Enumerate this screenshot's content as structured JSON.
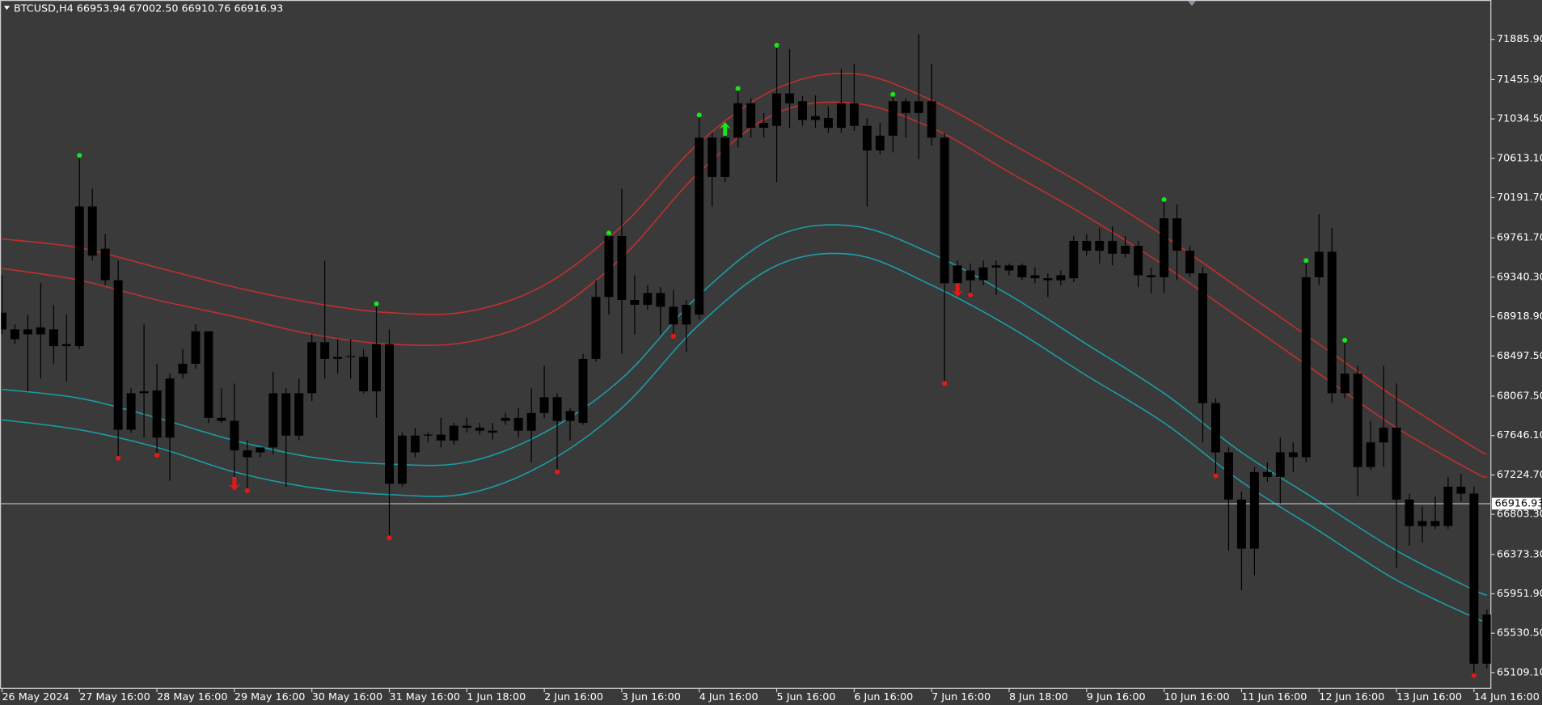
{
  "chart_data": {
    "type": "candlestick",
    "title": "BTCUSD,H4  66953.94 67002.50 66910.76 66916.93",
    "candle_color": "#000000",
    "categories": [
      "26 May 2024",
      null,
      null,
      null,
      null,
      null,
      "27 May 16:00",
      null,
      null,
      null,
      null,
      null,
      "28 May 16:00",
      null,
      null,
      null,
      null,
      null,
      "29 May 16:00",
      null,
      null,
      null,
      null,
      null,
      "30 May 16:00",
      null,
      null,
      null,
      null,
      null,
      "31 May 16:00",
      null,
      null,
      null,
      null,
      null,
      "1 Jun 18:00",
      null,
      null,
      null,
      null,
      null,
      "2 Jun 16:00",
      null,
      null,
      null,
      null,
      null,
      "3 Jun 16:00",
      null,
      null,
      null,
      null,
      null,
      "4 Jun 16:00",
      null,
      null,
      null,
      null,
      null,
      "5 Jun 16:00",
      null,
      null,
      null,
      null,
      null,
      "6 Jun 16:00",
      null,
      null,
      null,
      null,
      null,
      "7 Jun 16:00",
      null,
      null,
      null,
      null,
      null,
      "8 Jun 18:00",
      null,
      null,
      null,
      null,
      null,
      "9 Jun 16:00",
      null,
      null,
      null,
      null,
      null,
      "10 Jun 16:00",
      null,
      null,
      null,
      null,
      null,
      "11 Jun 16:00",
      null,
      null,
      null,
      null,
      null,
      "12 Jun 16:00",
      null,
      null,
      null,
      null,
      null,
      "13 Jun 16:00",
      null,
      null,
      null,
      null,
      null,
      "14 Jun 16:00",
      null
    ],
    "open": [
      68961,
      68782,
      68782,
      68803,
      68782,
      68624,
      68603,
      70097,
      69645,
      69308,
      68098,
      68119,
      68129,
      67624,
      68308,
      68414,
      68761,
      67835,
      67803,
      67487,
      67466,
      67519,
      68098,
      67645,
      68098,
      68645,
      68466,
      68487,
      68487,
      68119,
      68624,
      67130,
      67645,
      67645,
      67656,
      67593,
      67751,
      67730,
      67698,
      67803,
      67835,
      67698,
      67887,
      68056,
      67803,
      67782,
      68466,
      69129,
      69781,
      69097,
      69045,
      69171,
      69024,
      68834,
      68940,
      70834,
      70413,
      70834,
      71202,
      70939,
      70960,
      71307,
      71223,
      71065,
      71044,
      70939,
      71202,
      70960,
      70697,
      70855,
      71223,
      71097,
      71223,
      70834,
      69276,
      69413,
      69308,
      69445,
      69466,
      69466,
      69361,
      69329,
      69308,
      69329,
      69729,
      69624,
      69729,
      69592,
      69676,
      69361,
      69340,
      69971,
      69624,
      69382,
      67993,
      67466,
      66961,
      66435,
      67256,
      67203,
      67466,
      67414,
      69340,
      69613,
      68098,
      68308,
      67309,
      67572,
      67730,
      66961,
      66677,
      66730,
      66677,
      67098,
      67024,
      65204
    ],
    "high": [
      69361,
      68834,
      68940,
      69276,
      69045,
      68940,
      70623,
      70287,
      69802,
      69518,
      68150,
      68834,
      68414,
      68308,
      68571,
      68834,
      68761,
      68150,
      68203,
      67593,
      67519,
      68329,
      68150,
      68256,
      68729,
      69518,
      68677,
      68677,
      68571,
      69034,
      68782,
      67677,
      67730,
      67677,
      67835,
      67782,
      67835,
      67782,
      67782,
      67887,
      67940,
      68150,
      68392,
      68098,
      67940,
      68519,
      69308,
      69792,
      70287,
      69361,
      69255,
      69234,
      69203,
      69097,
      71055,
      70886,
      70960,
      71339,
      71255,
      71097,
      71802,
      71781,
      71276,
      71286,
      71170,
      71570,
      71623,
      71044,
      70992,
      71276,
      71255,
      71939,
      71623,
      70886,
      69518,
      69487,
      69518,
      69518,
      69487,
      69487,
      69445,
      69382,
      69413,
      69781,
      69802,
      69866,
      69887,
      69781,
      69729,
      69445,
      70150,
      70118,
      69676,
      69445,
      68045,
      67519,
      67046,
      67309,
      67361,
      67624,
      67572,
      69497,
      70013,
      69866,
      68645,
      68392,
      67803,
      68392,
      68203,
      67024,
      66888,
      66993,
      67203,
      67235,
      67098,
      65783
    ],
    "low": [
      68729,
      68624,
      68119,
      68256,
      68414,
      68224,
      68571,
      69518,
      69255,
      67424,
      67677,
      67624,
      67456,
      67161,
      68256,
      68361,
      67782,
      67782,
      67098,
      67077,
      67414,
      67445,
      67098,
      67593,
      68014,
      68256,
      68308,
      68256,
      68098,
      67835,
      66572,
      67098,
      67414,
      67572,
      67519,
      67551,
      67677,
      67656,
      67603,
      67761,
      67624,
      67361,
      67835,
      67277,
      67593,
      67761,
      68434,
      68940,
      68519,
      68729,
      68992,
      68729,
      68729,
      68540,
      68887,
      70097,
      70360,
      70729,
      70834,
      70834,
      70360,
      70939,
      70960,
      70939,
      70886,
      70886,
      70907,
      70097,
      70655,
      70676,
      70834,
      70602,
      70750,
      68224,
      69171,
      69171,
      69255,
      69150,
      69361,
      69308,
      69276,
      69129,
      69255,
      69287,
      69571,
      69487,
      69466,
      69550,
      69234,
      69171,
      69171,
      69308,
      69340,
      67572,
      67235,
      66414,
      65993,
      66151,
      67151,
      66919,
      67256,
      67361,
      69255,
      67993,
      68045,
      66993,
      67277,
      67309,
      66225,
      66467,
      66498,
      66646,
      66646,
      66940,
      65099,
      65151
    ],
    "close": [
      68782,
      68677,
      68729,
      68729,
      68603,
      68603,
      70097,
      69571,
      69308,
      67708,
      67708,
      68098,
      67624,
      68256,
      68414,
      68761,
      67835,
      67803,
      67487,
      67414,
      67519,
      68098,
      67645,
      68098,
      68645,
      68466,
      68487,
      68498,
      68119,
      68624,
      67130,
      67645,
      67466,
      67656,
      67593,
      67751,
      67730,
      67698,
      67677,
      67835,
      67698,
      67887,
      68056,
      67803,
      67908,
      68466,
      69129,
      69781,
      69097,
      69045,
      69171,
      69024,
      68834,
      69045,
      70834,
      70413,
      70834,
      71202,
      70939,
      70992,
      71307,
      71202,
      71023,
      71023,
      70939,
      71202,
      70960,
      70697,
      70855,
      71223,
      71097,
      71223,
      70834,
      69276,
      69466,
      69308,
      69445,
      69466,
      69413,
      69340,
      69329,
      69308,
      69361,
      69729,
      69624,
      69729,
      69592,
      69676,
      69361,
      69340,
      69971,
      69624,
      69382,
      67993,
      67466,
      66961,
      66435,
      67256,
      67203,
      67466,
      67414,
      69340,
      69613,
      68098,
      68308,
      67309,
      67572,
      67730,
      66961,
      66677,
      66730,
      66677,
      67098,
      67024,
      65204,
      65730
    ],
    "series": [
      {
        "color": "#c0302e",
        "x": [
          0,
          6,
          12,
          18,
          24,
          30,
          36,
          42,
          48,
          54,
          60,
          66,
          72,
          78,
          84,
          90,
          96,
          102,
          108,
          114,
          115
        ],
        "values": [
          69750,
          69655,
          69445,
          69234,
          69066,
          68961,
          68971,
          69255,
          69887,
          70781,
          71360,
          71518,
          71234,
          70781,
          70308,
          69781,
          69203,
          68624,
          68045,
          67519,
          67445
        ]
      },
      {
        "color": "#c0302e",
        "x": [
          0,
          6,
          12,
          18,
          24,
          30,
          36,
          42,
          48,
          54,
          60,
          66,
          72,
          78,
          84,
          90,
          96,
          102,
          108,
          114,
          115
        ],
        "values": [
          69434,
          69308,
          69097,
          68919,
          68729,
          68624,
          68645,
          68919,
          69550,
          70465,
          71097,
          71202,
          70939,
          70465,
          69992,
          69466,
          68887,
          68308,
          67730,
          67256,
          67203
        ]
      },
      {
        "color": "#1a9ea6",
        "x": [
          0,
          6,
          12,
          18,
          24,
          30,
          36,
          42,
          48,
          54,
          60,
          66,
          72,
          78,
          84,
          90,
          96,
          102,
          108,
          114,
          115
        ],
        "values": [
          68140,
          68045,
          67835,
          67593,
          67414,
          67340,
          67361,
          67677,
          68256,
          69150,
          69781,
          69887,
          69592,
          69150,
          68624,
          68098,
          67466,
          66940,
          66414,
          65993,
          65941
        ]
      },
      {
        "color": "#1a9ea6",
        "x": [
          0,
          6,
          12,
          18,
          24,
          30,
          36,
          42,
          48,
          54,
          60,
          66,
          72,
          78,
          84,
          90,
          96,
          102,
          108,
          114,
          115
        ],
        "values": [
          67814,
          67708,
          67519,
          67256,
          67088,
          67014,
          67024,
          67340,
          67940,
          68834,
          69466,
          69581,
          69255,
          68813,
          68287,
          67782,
          67151,
          66625,
          66098,
          65699,
          65646
        ]
      }
    ],
    "signals": {
      "high_dots": [
        6,
        29,
        47,
        54,
        57,
        60,
        69,
        90,
        101,
        104
      ],
      "low_dots": [
        9,
        12,
        19,
        30,
        43,
        52,
        73,
        75,
        94,
        114
      ],
      "buy_arrows": [
        56
      ],
      "sell_arrows": [
        18,
        74
      ]
    },
    "signal_colors": {
      "up": "#19e619",
      "down": "#e61919"
    },
    "current_price": 66916.93,
    "ylim": [
      64941,
      72307
    ],
    "yticks": [
      {
        "value": 71885.9,
        "label": "71885.90"
      },
      {
        "value": 71455.9,
        "label": "71455.90"
      },
      {
        "value": 71034.5,
        "label": "71034.50"
      },
      {
        "value": 70613.1,
        "label": "70613.10"
      },
      {
        "value": 70191.7,
        "label": "70191.70"
      },
      {
        "value": 69761.7,
        "label": "69761.70"
      },
      {
        "value": 69340.3,
        "label": "69340.30"
      },
      {
        "value": 68918.9,
        "label": "68918.90"
      },
      {
        "value": 68497.5,
        "label": "68497.50"
      },
      {
        "value": 68067.5,
        "label": "68067.50"
      },
      {
        "value": 67646.1,
        "label": "67646.10"
      },
      {
        "value": 67224.7,
        "label": "67224.70"
      },
      {
        "value": 66803.3,
        "label": "66803.30"
      },
      {
        "value": 66373.3,
        "label": "66373.30"
      },
      {
        "value": 65951.9,
        "label": "65951.90"
      },
      {
        "value": 65530.5,
        "label": "65530.50"
      },
      {
        "value": 65109.1,
        "label": "65109.10"
      }
    ]
  }
}
